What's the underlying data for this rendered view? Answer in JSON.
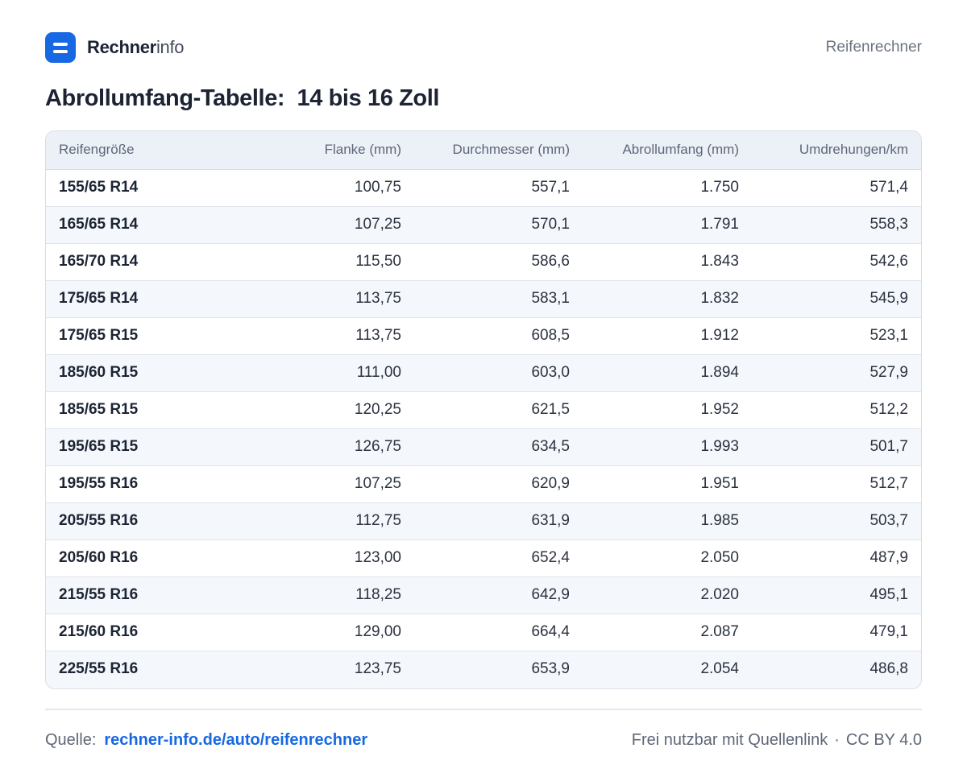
{
  "brand": {
    "name_bold": "Rechner",
    "name_light": "info"
  },
  "header": {
    "nav_label": "Reifenrechner"
  },
  "title": "Abrollumfang-Tabelle:  14 bis 16 Zoll",
  "table": {
    "headers": [
      "Reifengröße",
      "Flanke (mm)",
      "Durchmesser (mm)",
      "Abrollumfang (mm)",
      "Umdrehungen/km"
    ],
    "rows": [
      [
        "155/65 R14",
        "100,75",
        "557,1",
        "1.750",
        "571,4"
      ],
      [
        "165/65 R14",
        "107,25",
        "570,1",
        "1.791",
        "558,3"
      ],
      [
        "165/70 R14",
        "115,50",
        "586,6",
        "1.843",
        "542,6"
      ],
      [
        "175/65 R14",
        "113,75",
        "583,1",
        "1.832",
        "545,9"
      ],
      [
        "175/65 R15",
        "113,75",
        "608,5",
        "1.912",
        "523,1"
      ],
      [
        "185/60 R15",
        "111,00",
        "603,0",
        "1.894",
        "527,9"
      ],
      [
        "185/65 R15",
        "120,25",
        "621,5",
        "1.952",
        "512,2"
      ],
      [
        "195/65 R15",
        "126,75",
        "634,5",
        "1.993",
        "501,7"
      ],
      [
        "195/55 R16",
        "107,25",
        "620,9",
        "1.951",
        "512,7"
      ],
      [
        "205/55 R16",
        "112,75",
        "631,9",
        "1.985",
        "503,7"
      ],
      [
        "205/60 R16",
        "123,00",
        "652,4",
        "2.050",
        "487,9"
      ],
      [
        "215/55 R16",
        "118,25",
        "642,9",
        "2.020",
        "495,1"
      ],
      [
        "215/60 R16",
        "129,00",
        "664,4",
        "2.087",
        "479,1"
      ],
      [
        "225/55 R16",
        "123,75",
        "653,9",
        "2.054",
        "486,8"
      ]
    ]
  },
  "footer": {
    "source_label": "Quelle:",
    "source_link": "rechner-info.de/auto/reifenrechner",
    "license_text": "Frei nutzbar mit Quellenlink",
    "separator": "·",
    "license": "CC BY 4.0"
  },
  "colors": {
    "accent": "#1668e3",
    "header_bg": "#ecf1f8",
    "stripe": "#f4f7fb",
    "text": "#1c2434"
  }
}
